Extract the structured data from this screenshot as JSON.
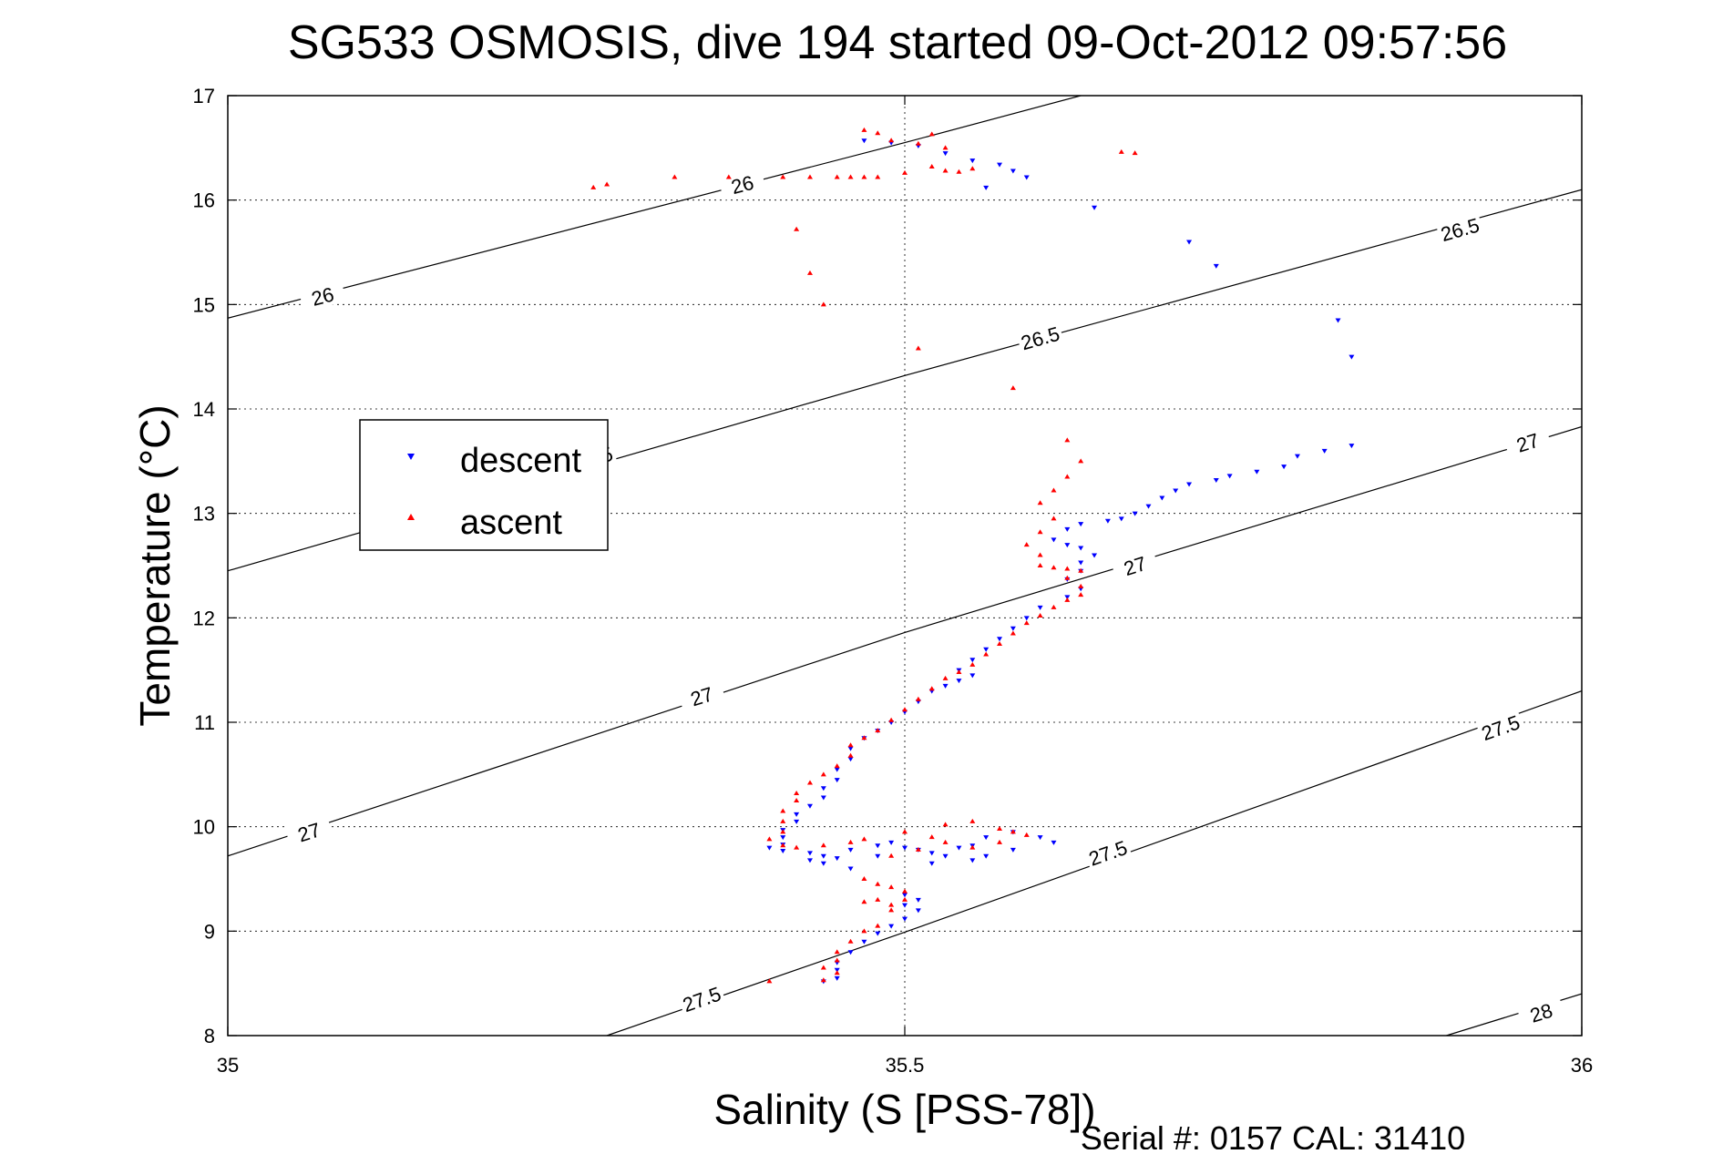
{
  "chart_data": {
    "type": "scatter",
    "title": "SG533 OSMOSIS, dive 194 started 09-Oct-2012 09:57:56",
    "xlabel": "Salinity (S [PSS-78])",
    "ylabel": "Temperature (°C)",
    "footer": "Serial #: 0157  CAL: 31410",
    "xlim": [
      35,
      36
    ],
    "ylim": [
      8,
      17
    ],
    "xticks": [
      "35",
      "35.5",
      "36"
    ],
    "yticks": [
      "8",
      "9",
      "10",
      "11",
      "12",
      "13",
      "14",
      "15",
      "16",
      "17"
    ],
    "grid": true,
    "legend": {
      "placement": "upper-left",
      "entries": [
        "descent",
        "ascent"
      ]
    },
    "colors": {
      "descent": "#0000ff",
      "ascent": "#ff0000",
      "axes": "#000000"
    },
    "density_contours": [
      {
        "label": "26",
        "points": [
          [
            35.0,
            14.87
          ],
          [
            35.5,
            16.55
          ],
          [
            35.63,
            17.0
          ]
        ],
        "label_at": [
          [
            35.07,
            15.08
          ],
          [
            35.38,
            16.15
          ]
        ]
      },
      {
        "label": "26.5",
        "points": [
          [
            35.0,
            12.45
          ],
          [
            35.5,
            14.32
          ],
          [
            36.0,
            16.1
          ]
        ],
        "label_at": [
          [
            35.27,
            13.53
          ],
          [
            35.6,
            14.68
          ],
          [
            35.91,
            15.72
          ]
        ]
      },
      {
        "label": "27",
        "points": [
          [
            35.0,
            9.72
          ],
          [
            35.5,
            11.86
          ],
          [
            36.0,
            13.83
          ]
        ],
        "label_at": [
          [
            35.06,
            9.95
          ],
          [
            35.35,
            11.25
          ],
          [
            35.67,
            12.5
          ],
          [
            35.96,
            13.68
          ]
        ]
      },
      {
        "label": "27.5",
        "points": [
          [
            35.28,
            8.0
          ],
          [
            35.5,
            8.99
          ],
          [
            36.0,
            11.3
          ]
        ],
        "label_at": [
          [
            35.35,
            8.35
          ],
          [
            35.65,
            9.75
          ],
          [
            35.94,
            10.95
          ]
        ]
      },
      {
        "label": "28",
        "points": [
          [
            35.9,
            8.0
          ],
          [
            36.0,
            8.4
          ]
        ],
        "label_at": [
          [
            35.97,
            8.22
          ]
        ]
      }
    ],
    "series": [
      {
        "name": "descent",
        "marker": "triangle-down",
        "points": [
          [
            35.47,
            16.57
          ],
          [
            35.49,
            16.55
          ],
          [
            35.51,
            16.52
          ],
          [
            35.53,
            16.45
          ],
          [
            35.55,
            16.38
          ],
          [
            35.57,
            16.34
          ],
          [
            35.58,
            16.28
          ],
          [
            35.59,
            16.22
          ],
          [
            35.56,
            16.12
          ],
          [
            35.64,
            15.93
          ],
          [
            35.71,
            15.6
          ],
          [
            35.73,
            15.37
          ],
          [
            35.82,
            14.85
          ],
          [
            35.83,
            14.5
          ],
          [
            35.83,
            13.65
          ],
          [
            35.81,
            13.6
          ],
          [
            35.79,
            13.55
          ],
          [
            35.78,
            13.45
          ],
          [
            35.76,
            13.4
          ],
          [
            35.74,
            13.36
          ],
          [
            35.73,
            13.32
          ],
          [
            35.71,
            13.28
          ],
          [
            35.7,
            13.22
          ],
          [
            35.69,
            13.15
          ],
          [
            35.68,
            13.07
          ],
          [
            35.67,
            13.0
          ],
          [
            35.66,
            12.95
          ],
          [
            35.65,
            12.93
          ],
          [
            35.63,
            12.9
          ],
          [
            35.62,
            12.85
          ],
          [
            35.61,
            12.75
          ],
          [
            35.62,
            12.7
          ],
          [
            35.63,
            12.67
          ],
          [
            35.64,
            12.6
          ],
          [
            35.63,
            12.53
          ],
          [
            35.63,
            12.45
          ],
          [
            35.62,
            12.37
          ],
          [
            35.63,
            12.28
          ],
          [
            35.62,
            12.2
          ],
          [
            35.6,
            12.1
          ],
          [
            35.59,
            12.0
          ],
          [
            35.58,
            11.9
          ],
          [
            35.57,
            11.8
          ],
          [
            35.56,
            11.7
          ],
          [
            35.55,
            11.6
          ],
          [
            35.54,
            11.5
          ],
          [
            35.55,
            11.45
          ],
          [
            35.54,
            11.4
          ],
          [
            35.53,
            11.35
          ],
          [
            35.52,
            11.3
          ],
          [
            35.51,
            11.2
          ],
          [
            35.5,
            11.1
          ],
          [
            35.49,
            11.0
          ],
          [
            35.48,
            10.92
          ],
          [
            35.47,
            10.85
          ],
          [
            35.46,
            10.75
          ],
          [
            35.46,
            10.65
          ],
          [
            35.45,
            10.55
          ],
          [
            35.45,
            10.45
          ],
          [
            35.44,
            10.37
          ],
          [
            35.44,
            10.28
          ],
          [
            35.43,
            10.2
          ],
          [
            35.42,
            10.12
          ],
          [
            35.42,
            10.05
          ],
          [
            35.41,
            9.97
          ],
          [
            35.41,
            9.9
          ],
          [
            35.41,
            9.83
          ],
          [
            35.4,
            9.8
          ],
          [
            35.41,
            9.77
          ],
          [
            35.43,
            9.75
          ],
          [
            35.44,
            9.72
          ],
          [
            35.43,
            9.68
          ],
          [
            35.44,
            9.65
          ],
          [
            35.45,
            9.7
          ],
          [
            35.46,
            9.78
          ],
          [
            35.48,
            9.82
          ],
          [
            35.49,
            9.85
          ],
          [
            35.5,
            9.8
          ],
          [
            35.51,
            9.78
          ],
          [
            35.52,
            9.75
          ],
          [
            35.53,
            9.72
          ],
          [
            35.54,
            9.8
          ],
          [
            35.55,
            9.82
          ],
          [
            35.56,
            9.9
          ],
          [
            35.58,
            9.95
          ],
          [
            35.6,
            9.9
          ],
          [
            35.61,
            9.85
          ],
          [
            35.58,
            9.78
          ],
          [
            35.56,
            9.72
          ],
          [
            35.55,
            9.68
          ],
          [
            35.52,
            9.65
          ],
          [
            35.48,
            9.72
          ],
          [
            35.46,
            9.6
          ],
          [
            35.5,
            9.35
          ],
          [
            35.51,
            9.3
          ],
          [
            35.5,
            9.25
          ],
          [
            35.51,
            9.2
          ],
          [
            35.5,
            9.12
          ],
          [
            35.49,
            9.05
          ],
          [
            35.48,
            8.98
          ],
          [
            35.47,
            8.9
          ],
          [
            35.46,
            8.8
          ],
          [
            35.45,
            8.7
          ],
          [
            35.45,
            8.63
          ],
          [
            35.45,
            8.55
          ],
          [
            35.44,
            8.52
          ]
        ]
      },
      {
        "name": "ascent",
        "marker": "triangle-up",
        "points": [
          [
            35.27,
            16.12
          ],
          [
            35.28,
            16.15
          ],
          [
            35.33,
            16.22
          ],
          [
            35.37,
            16.22
          ],
          [
            35.41,
            16.22
          ],
          [
            35.43,
            16.22
          ],
          [
            35.45,
            16.22
          ],
          [
            35.46,
            16.22
          ],
          [
            35.47,
            16.22
          ],
          [
            35.48,
            16.22
          ],
          [
            35.5,
            16.26
          ],
          [
            35.52,
            16.32
          ],
          [
            35.53,
            16.28
          ],
          [
            35.54,
            16.27
          ],
          [
            35.55,
            16.3
          ],
          [
            35.49,
            16.57
          ],
          [
            35.48,
            16.64
          ],
          [
            35.47,
            16.67
          ],
          [
            35.51,
            16.54
          ],
          [
            35.53,
            16.5
          ],
          [
            35.52,
            16.63
          ],
          [
            35.66,
            16.46
          ],
          [
            35.67,
            16.45
          ],
          [
            35.42,
            15.72
          ],
          [
            35.43,
            15.3
          ],
          [
            35.44,
            15.0
          ],
          [
            35.51,
            14.58
          ],
          [
            35.58,
            14.2
          ],
          [
            35.62,
            13.7
          ],
          [
            35.63,
            13.5
          ],
          [
            35.62,
            13.35
          ],
          [
            35.61,
            13.22
          ],
          [
            35.6,
            13.1
          ],
          [
            35.61,
            12.95
          ],
          [
            35.6,
            12.82
          ],
          [
            35.59,
            12.7
          ],
          [
            35.6,
            12.6
          ],
          [
            35.6,
            12.5
          ],
          [
            35.61,
            12.48
          ],
          [
            35.62,
            12.47
          ],
          [
            35.63,
            12.45
          ],
          [
            35.62,
            12.38
          ],
          [
            35.63,
            12.3
          ],
          [
            35.63,
            12.22
          ],
          [
            35.62,
            12.17
          ],
          [
            35.61,
            12.1
          ],
          [
            35.6,
            12.02
          ],
          [
            35.59,
            11.95
          ],
          [
            35.58,
            11.85
          ],
          [
            35.57,
            11.75
          ],
          [
            35.56,
            11.65
          ],
          [
            35.55,
            11.55
          ],
          [
            35.54,
            11.48
          ],
          [
            35.53,
            11.42
          ],
          [
            35.52,
            11.32
          ],
          [
            35.51,
            11.22
          ],
          [
            35.5,
            11.12
          ],
          [
            35.49,
            11.02
          ],
          [
            35.48,
            10.92
          ],
          [
            35.47,
            10.85
          ],
          [
            35.46,
            10.78
          ],
          [
            35.46,
            10.68
          ],
          [
            35.45,
            10.58
          ],
          [
            35.44,
            10.5
          ],
          [
            35.43,
            10.42
          ],
          [
            35.42,
            10.32
          ],
          [
            35.42,
            10.25
          ],
          [
            35.41,
            10.15
          ],
          [
            35.41,
            10.05
          ],
          [
            35.41,
            9.95
          ],
          [
            35.4,
            9.88
          ],
          [
            35.41,
            9.82
          ],
          [
            35.42,
            9.8
          ],
          [
            35.44,
            9.82
          ],
          [
            35.46,
            9.85
          ],
          [
            35.47,
            9.88
          ],
          [
            35.5,
            9.95
          ],
          [
            35.52,
            9.9
          ],
          [
            35.53,
            10.02
          ],
          [
            35.55,
            10.05
          ],
          [
            35.57,
            9.98
          ],
          [
            35.58,
            9.95
          ],
          [
            35.59,
            9.92
          ],
          [
            35.57,
            9.85
          ],
          [
            35.55,
            9.8
          ],
          [
            35.53,
            9.85
          ],
          [
            35.51,
            9.78
          ],
          [
            35.49,
            9.72
          ],
          [
            35.47,
            9.5
          ],
          [
            35.48,
            9.45
          ],
          [
            35.49,
            9.42
          ],
          [
            35.5,
            9.38
          ],
          [
            35.5,
            9.3
          ],
          [
            35.49,
            9.25
          ],
          [
            35.48,
            9.3
          ],
          [
            35.47,
            9.28
          ],
          [
            35.49,
            9.2
          ],
          [
            35.48,
            9.05
          ],
          [
            35.47,
            9.0
          ],
          [
            35.46,
            8.9
          ],
          [
            35.45,
            8.8
          ],
          [
            35.45,
            8.72
          ],
          [
            35.44,
            8.65
          ],
          [
            35.45,
            8.6
          ],
          [
            35.44,
            8.53
          ],
          [
            35.4,
            8.52
          ]
        ]
      }
    ]
  }
}
